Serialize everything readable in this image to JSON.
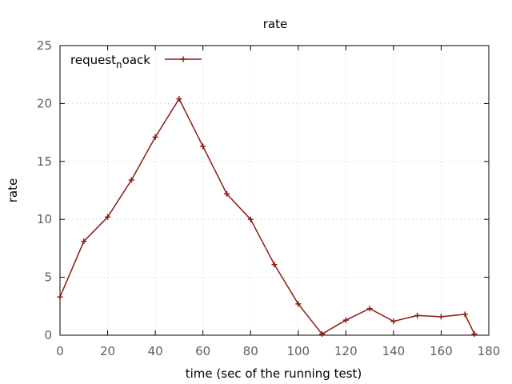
{
  "chart_data": {
    "type": "line",
    "title": "rate",
    "xlabel": "time (sec of the running test)",
    "ylabel": "rate",
    "xlim": [
      0,
      180
    ],
    "ylim": [
      0,
      25
    ],
    "xticks": [
      0,
      20,
      40,
      60,
      80,
      100,
      120,
      140,
      160,
      180
    ],
    "yticks": [
      0,
      5,
      10,
      15,
      20,
      25
    ],
    "grid": true,
    "legend_position": "top-left",
    "series": [
      {
        "name_base": "request",
        "name_sub": "n",
        "name_rest": "oack",
        "color": "#8b1a10",
        "marker": "plus",
        "x": [
          0,
          10,
          20,
          30,
          40,
          50,
          60,
          70,
          80,
          90,
          100,
          110,
          120,
          130,
          140,
          150,
          160,
          170,
          174
        ],
        "y": [
          3.3,
          8.1,
          10.2,
          13.4,
          17.1,
          20.4,
          16.3,
          12.2,
          10.0,
          6.1,
          2.7,
          0.1,
          1.3,
          2.3,
          1.2,
          1.7,
          1.6,
          1.8,
          0.1
        ]
      }
    ]
  }
}
